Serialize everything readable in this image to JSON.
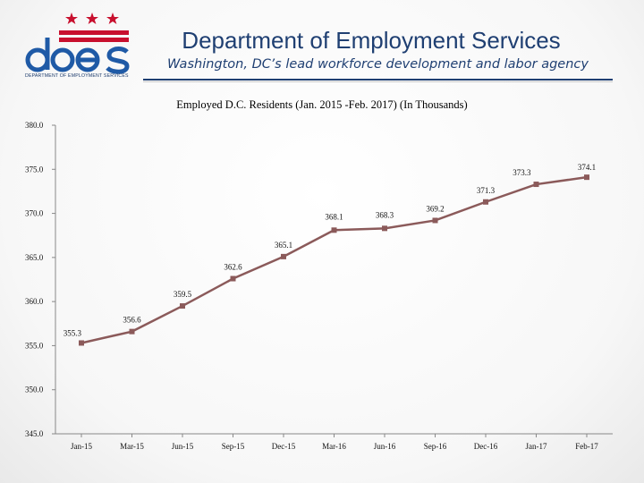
{
  "header": {
    "logo_text": "does",
    "logo_subtext": "DEPARTMENT OF EMPLOYMENT SERVICES",
    "org_title": "Department of Employment Services",
    "org_subtitle": "Washington, DC’s lead workforce development and labor agency"
  },
  "colors": {
    "brand_blue": "#1f3f72",
    "brand_red": "#c8102e",
    "series": "#8b5a5a"
  },
  "chart_data": {
    "type": "line",
    "title": "Employed D.C. Residents (Jan. 2015 -Feb. 2017) (In Thousands)",
    "xlabel": "",
    "ylabel": "",
    "categories": [
      "Jan-15",
      "Mar-15",
      "Jun-15",
      "Sep-15",
      "Dec-15",
      "Mar-16",
      "Jun-16",
      "Sep-16",
      "Dec-16",
      "Jan-17",
      "Feb-17"
    ],
    "series": [
      {
        "values": [
          355.3,
          356.6,
          359.5,
          362.6,
          365.1,
          368.1,
          368.3,
          369.2,
          371.3,
          373.3,
          374.1
        ]
      }
    ],
    "data_labels": [
      "355.3",
      "356.6",
      "359.5",
      "362.6",
      "365.1",
      "368.1",
      "368.3",
      "369.2",
      "371.3",
      "373.3",
      "374.1"
    ],
    "yticks": [
      "345.0",
      "350.0",
      "355.0",
      "360.0",
      "365.0",
      "370.0",
      "375.0",
      "380.0"
    ],
    "ylim": [
      345,
      380
    ],
    "grid": false,
    "legend": "none"
  }
}
